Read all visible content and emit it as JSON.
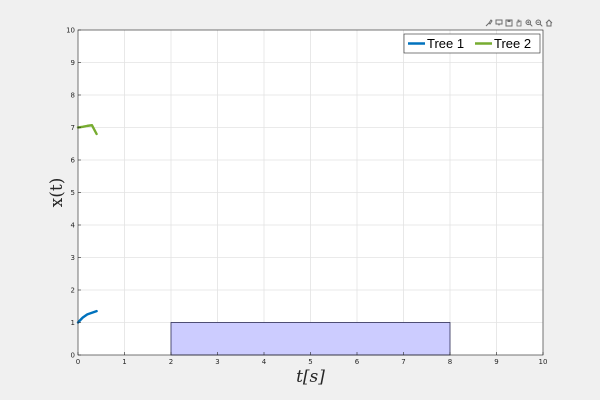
{
  "toolbar": {
    "icons": [
      "brush-icon",
      "data-tip-icon",
      "save-icon",
      "pan-icon",
      "zoom-in-icon",
      "zoom-out-icon",
      "home-icon"
    ]
  },
  "chart_data": {
    "type": "line",
    "xlabel": "t[s]",
    "ylabel": "x(t)",
    "xlim": [
      0,
      10
    ],
    "ylim": [
      0,
      10
    ],
    "xticks": [
      0,
      1,
      2,
      3,
      4,
      5,
      6,
      7,
      8,
      9,
      10
    ],
    "yticks": [
      0,
      1,
      2,
      3,
      4,
      5,
      6,
      7,
      8,
      9,
      10
    ],
    "grid": true,
    "legend_position": "top-right",
    "legend_orientation": "horizontal",
    "series": [
      {
        "name": "Tree 1",
        "color": "#0072bd",
        "x": [
          0,
          0.1,
          0.2,
          0.3,
          0.4
        ],
        "y": [
          1.0,
          1.15,
          1.25,
          1.3,
          1.35
        ]
      },
      {
        "name": "Tree 2",
        "color": "#77ac30",
        "x": [
          0,
          0.1,
          0.2,
          0.3,
          0.4
        ],
        "y": [
          7.0,
          7.02,
          7.05,
          7.07,
          6.8
        ]
      }
    ],
    "shaded_region": {
      "x": [
        2,
        8
      ],
      "y": [
        0,
        1
      ],
      "fill": "#ccccff",
      "edge": "#2b2b55"
    }
  }
}
